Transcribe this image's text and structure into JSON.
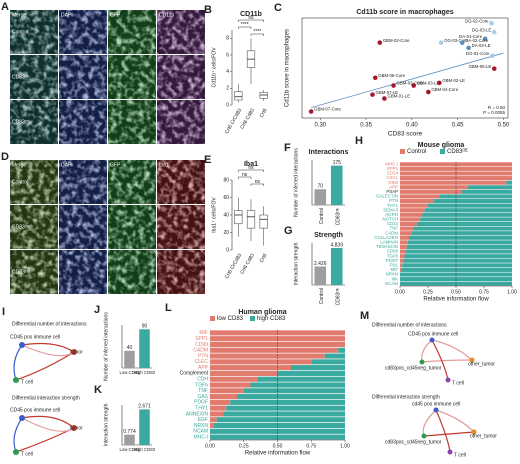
{
  "panels": {
    "A": {
      "letter": "A",
      "columns": [
        "Merge",
        "DAPI",
        "GFP",
        "CD11b"
      ],
      "rows": [
        "Control",
        "CD83ᴼᴱ",
        "CD83ᴷᴼ"
      ]
    },
    "D": {
      "letter": "D",
      "columns": [
        "Merge",
        "DAPI",
        "GFP",
        "Iba1"
      ],
      "rows": [
        "Control",
        "CD83ᴼᴱ",
        "CD83ᴷᴼ"
      ]
    },
    "I": {
      "letter": "I",
      "title_1": "Differential number of interactions",
      "title_2": "Differential interaction strength",
      "nodes": [
        "CD45 pos immune cell",
        "tumor",
        "T cell"
      ]
    },
    "M": {
      "letter": "M",
      "title_1": "Differential number of interactions",
      "title_2": "Differential interaction strength",
      "nodes_1": [
        "CD45 pos immune cell",
        "other_tumor",
        "cd83pos_cd45neg_tumor",
        "T cell"
      ],
      "nodes_2": [
        "cd45 pos immune cell",
        "other_tumor",
        "cd83pos_cd45neg_tumor",
        "T cell"
      ]
    }
  },
  "chart_data": [
    {
      "type": "box",
      "letter": "B",
      "title": "CD11b",
      "ylabel": "Cd11b⁺ cells/FOV",
      "categories": [
        "Crt6 CrCd83",
        "Crt6 Cd83",
        "Crt6"
      ],
      "boxes": [
        {
          "min": 0.3,
          "q1": 0.6,
          "median": 1,
          "q3": 1.6,
          "max": 2.5
        },
        {
          "min": 2.5,
          "q1": 4.5,
          "median": 5.5,
          "q3": 6.5,
          "max": 8
        },
        {
          "min": 0.5,
          "q1": 0.8,
          "median": 1.2,
          "q3": 1.5,
          "max": 1.8
        }
      ],
      "annotations": [
        "ns",
        "****",
        "****"
      ],
      "color": "#555555",
      "ylim": [
        0,
        9
      ],
      "yticks": [
        0,
        2,
        4,
        6,
        8
      ]
    },
    {
      "type": "scatter",
      "letter": "C",
      "title": "Cd11b score in macrophages",
      "xlabel": "CD83 score",
      "ylabel": "Cd11b score in macrophages",
      "points": [
        {
          "label": "DG-02-Core",
          "x": 0.487,
          "y": 0.98,
          "color": "#a8cde6"
        },
        {
          "label": "DG-03-LE",
          "x": 0.49,
          "y": 0.91,
          "color": "#a8cde6"
        },
        {
          "label": "DA-01-Core",
          "x": 0.48,
          "y": 0.86,
          "color": "#5d8fc2"
        },
        {
          "label": "DA-02-LE",
          "x": 0.462,
          "y": 0.79,
          "color": "#5d8fc2"
        },
        {
          "label": "OG-03-Core",
          "x": 0.432,
          "y": 0.83,
          "color": "#a8cde6"
        },
        {
          "label": "DA-02-Core",
          "x": 0.455,
          "y": 0.83,
          "color": "#5d8fc2"
        },
        {
          "label": "DG-01-Core",
          "x": 0.488,
          "y": 0.73,
          "color": "#a8cde6"
        },
        {
          "label": "GBM-05-LE",
          "x": 0.49,
          "y": 0.63,
          "color": "#a3182d"
        },
        {
          "label": "GBM-02-Core",
          "x": 0.365,
          "y": 0.83,
          "color": "#a3182d"
        },
        {
          "label": "GBM-06-Core",
          "x": 0.36,
          "y": 0.56,
          "color": "#a3182d"
        },
        {
          "label": "GBM-03-Core",
          "x": 0.38,
          "y": 0.5,
          "color": "#a3182d"
        },
        {
          "label": "GBM-03-LE",
          "x": 0.402,
          "y": 0.5,
          "color": "#a3182d"
        },
        {
          "label": "GBM-02-LE",
          "x": 0.43,
          "y": 0.52,
          "color": "#a3182d"
        },
        {
          "label": "GBM-04-Core",
          "x": 0.418,
          "y": 0.45,
          "color": "#a3182d"
        },
        {
          "label": "GBM-07-LE",
          "x": 0.357,
          "y": 0.43,
          "color": "#a3182d"
        },
        {
          "label": "GBM-01-LE",
          "x": 0.37,
          "y": 0.4,
          "color": "#a3182d"
        },
        {
          "label": "GBM-07-Core",
          "x": 0.29,
          "y": 0.3,
          "color": "#a3182d"
        }
      ],
      "trendline": {
        "x": [
          0.29,
          0.5
        ],
        "y": [
          0.33,
          0.75
        ],
        "color": "#5d8fc2"
      },
      "annotations": [
        "R = 0.60",
        "P = 0.0055"
      ],
      "xlim": [
        0.28,
        0.505
      ],
      "ylim": [
        0.25,
        1.02
      ],
      "xticks": [
        {
          "value": 0.3,
          "label": "0.30"
        },
        0.35,
        {
          "value": 0.4,
          "label": "0.40"
        },
        0.45,
        {
          "value": 0.5,
          "label": "0.50"
        }
      ]
    },
    {
      "type": "box",
      "letter": "E",
      "title": "Iba1",
      "ylabel": "Iba1⁺ cells/FOV",
      "categories": [
        "Crt6 CrCd83",
        "Crt6 Cd83",
        "Crt6"
      ],
      "boxes": [
        {
          "min": 15,
          "q1": 30,
          "median": 40,
          "q3": 45,
          "max": 60
        },
        {
          "min": 10,
          "q1": 25,
          "median": 38,
          "q3": 45,
          "max": 58
        },
        {
          "min": 5,
          "q1": 25,
          "median": 35,
          "q3": 40,
          "max": 50
        }
      ],
      "annotations": [
        "ns",
        "ns",
        "ns"
      ],
      "color": "#555555",
      "ylim": [
        0,
        80
      ],
      "yticks": [
        0,
        20,
        40,
        60,
        80
      ]
    },
    {
      "type": "bar",
      "letter": "F",
      "title": "Interactions",
      "ylabel": "Number of inferred interactions",
      "categories": [
        "Control",
        "CD83ᴼᴱ"
      ],
      "values": [
        70,
        175
      ],
      "colors": [
        "#9e9e9e",
        "#3aa99f"
      ],
      "ylim": [
        0,
        200
      ]
    },
    {
      "type": "bar",
      "letter": "G",
      "title": "Strength",
      "ylabel": "Interaction strength",
      "categories": [
        "Control",
        "CD83ᴼᴱ"
      ],
      "values": [
        2.426,
        4.839
      ],
      "colors": [
        "#9e9e9e",
        "#3aa99f"
      ],
      "ylim": [
        0,
        5.5
      ]
    },
    {
      "type": "stacked_hbar",
      "letter": "H",
      "title": "Mouse glioma",
      "xlabel": "Relative information flow",
      "categories": [
        "MHC-I",
        "SPP1",
        "CD34",
        "CXCL",
        "OSM",
        "APP",
        "PSAP",
        "GALECTIN",
        "PTN",
        "THY1",
        "SEMA3",
        "AGRN",
        "NOTCH",
        "CD22",
        "TNF",
        "CADM",
        "COLLAGEN",
        "LAMININ",
        "TENASCIN",
        "CD99",
        "TGFb",
        "PDGF",
        "FN1",
        "MIF",
        "NRXN",
        "MK",
        "NCAM"
      ],
      "series": [
        {
          "name": "Control",
          "color": "#e07b6e",
          "values": [
            1,
            1,
            1,
            1,
            0.95,
            0.6,
            0.55,
            0.35,
            0.3,
            0.25,
            0.22,
            0.2,
            0.18,
            0.15,
            0.12,
            0.1,
            0.08,
            0.07,
            0.06,
            0.05,
            0.04,
            0.03,
            0.02,
            0.01,
            0,
            0,
            0
          ]
        },
        {
          "name": "CD83ᴼᴱ",
          "color": "#3aa99f",
          "values": [
            0,
            0,
            0,
            0,
            0.05,
            0.4,
            0.45,
            0.65,
            0.7,
            0.75,
            0.78,
            0.8,
            0.82,
            0.85,
            0.88,
            0.9,
            0.92,
            0.93,
            0.94,
            0.95,
            0.96,
            0.97,
            0.98,
            0.99,
            1,
            1,
            1
          ]
        }
      ],
      "xlim": [
        0,
        1
      ],
      "xticks": [
        {
          "value": 0,
          "label": "0.00"
        },
        0.25,
        {
          "value": 0.5,
          "label": "0.50"
        },
        0.75,
        {
          "value": 1,
          "label": "1.00"
        }
      ]
    },
    {
      "type": "bar",
      "letter": "J",
      "ylabel": "Number of inferred interactions",
      "categories": [
        "Low CD83",
        "High CD83"
      ],
      "values": [
        40,
        90
      ],
      "colors": [
        "#9e9e9e",
        "#3aa99f"
      ],
      "ylim": [
        0,
        100
      ]
    },
    {
      "type": "bar",
      "letter": "K",
      "ylabel": "Interaction strength",
      "categories": [
        "Low CD83",
        "High CD83"
      ],
      "values": [
        0.774,
        2.671
      ],
      "colors": [
        "#9e9e9e",
        "#3aa99f"
      ],
      "ylim": [
        0,
        3
      ]
    },
    {
      "type": "stacked_hbar",
      "letter": "L",
      "title": "Human glioma",
      "xlabel": "Relative information flow",
      "categories": [
        "MIF",
        "SPP1",
        "CD99",
        "CADM",
        "PTN",
        "CLEC",
        "APP",
        "Complement",
        "CDH",
        "TGFb",
        "TNF",
        "GAS",
        "PDGF",
        "THY1",
        "ANNEXIN",
        "EGF",
        "NRXN",
        "NCAM",
        "MHC-I"
      ],
      "series": [
        {
          "name": "low CD83",
          "color": "#e07b6e",
          "values": [
            1,
            1,
            1,
            0.95,
            0.85,
            0.75,
            0.6,
            0.5,
            0.35,
            0.3,
            0.25,
            0.2,
            0.15,
            0.12,
            0.1,
            0.05,
            0.03,
            0,
            0
          ]
        },
        {
          "name": "high CD83",
          "color": "#3aa99f",
          "values": [
            0,
            0,
            0,
            0.05,
            0.15,
            0.25,
            0.4,
            0.5,
            0.65,
            0.7,
            0.75,
            0.8,
            0.85,
            0.88,
            0.9,
            0.95,
            0.97,
            1,
            1
          ]
        }
      ],
      "xlim": [
        0,
        1
      ],
      "xticks": [
        {
          "value": 0,
          "label": "0.00"
        },
        0.25,
        {
          "value": 0.5,
          "label": "0.50"
        },
        0.75,
        {
          "value": 1,
          "label": "1.00"
        }
      ]
    }
  ]
}
